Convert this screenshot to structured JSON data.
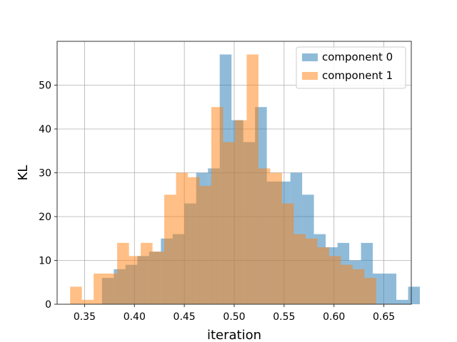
{
  "chart_data": {
    "type": "bar",
    "histogram": true,
    "xlabel": "iteration",
    "ylabel": "KL",
    "xlim": [
      0.3225,
      0.6775
    ],
    "ylim": [
      0,
      60
    ],
    "xticks": [
      0.35,
      0.4,
      0.45,
      0.5,
      0.55,
      0.6,
      0.65
    ],
    "xtick_labels": [
      "0.35",
      "0.40",
      "0.45",
      "0.50",
      "0.55",
      "0.60",
      "0.65"
    ],
    "yticks": [
      0,
      10,
      20,
      30,
      40,
      50
    ],
    "ytick_labels": [
      "0",
      "10",
      "20",
      "30",
      "40",
      "50"
    ],
    "grid": true,
    "legend_position": "top-right",
    "series": [
      {
        "name": "component 0",
        "color": "#1f77b4",
        "opacity": 0.5,
        "bin_width": 0.0118,
        "edges_start": 0.3675,
        "counts": [
          6,
          8,
          9,
          11,
          12,
          15,
          16,
          23,
          30,
          31,
          57,
          42,
          37,
          45,
          28,
          28,
          30,
          25,
          16,
          13,
          14,
          10,
          14,
          7,
          7,
          1,
          4
        ]
      },
      {
        "name": "component 1",
        "color": "#ff7f0e",
        "opacity": 0.5,
        "bin_width": 0.0118,
        "edges_start": 0.3355,
        "counts": [
          4,
          1,
          7,
          7,
          14,
          11,
          14,
          12,
          25,
          30,
          29,
          27,
          45,
          37,
          42,
          57,
          31,
          30,
          23,
          16,
          15,
          13,
          11,
          9,
          8,
          6
        ]
      }
    ]
  }
}
